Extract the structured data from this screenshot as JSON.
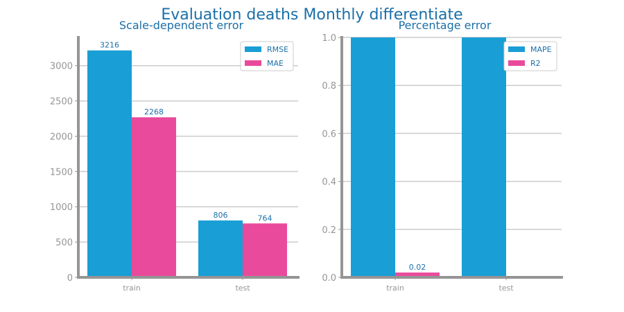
{
  "title": "Evaluation deaths Monthly differentiate",
  "colors": {
    "title": "#1a6fa8",
    "axis": "#959595",
    "tick": "#959595",
    "grid": "#cccccc",
    "bar_label": "#1a6fa8",
    "series_blue": "#199ed6",
    "series_pink": "#ea4a9c"
  },
  "chart_data": [
    {
      "type": "bar",
      "title": "Scale-dependent error",
      "categories": [
        "train",
        "test"
      ],
      "series": [
        {
          "name": "RMSE",
          "values": [
            3216,
            806
          ],
          "labels": [
            "3216",
            "806"
          ]
        },
        {
          "name": "MAE",
          "values": [
            2268,
            764
          ],
          "labels": [
            "2268",
            "764"
          ]
        }
      ],
      "ylim": [
        0,
        3400
      ],
      "yticks": [
        0,
        500,
        1000,
        1500,
        2000,
        2500,
        3000
      ],
      "ytick_labels": [
        "0",
        "500",
        "1000",
        "1500",
        "2000",
        "2500",
        "3000"
      ],
      "grid": true,
      "legend_position": "top-right"
    },
    {
      "type": "bar",
      "title": "Percentage error",
      "categories": [
        "train",
        "test"
      ],
      "series": [
        {
          "name": "MAPE",
          "values": [
            1.0,
            1.0
          ],
          "labels": [
            "",
            ""
          ]
        },
        {
          "name": "R2",
          "values": [
            0.02,
            0.0
          ],
          "labels": [
            "0.02",
            ""
          ]
        }
      ],
      "ylim": [
        0,
        1.0
      ],
      "yticks": [
        0.0,
        0.2,
        0.4,
        0.6,
        0.8,
        1.0
      ],
      "ytick_labels": [
        "0.0",
        "0.2",
        "0.4",
        "0.6",
        "0.8",
        "1.0"
      ],
      "grid": true,
      "legend_position": "top-right"
    }
  ]
}
